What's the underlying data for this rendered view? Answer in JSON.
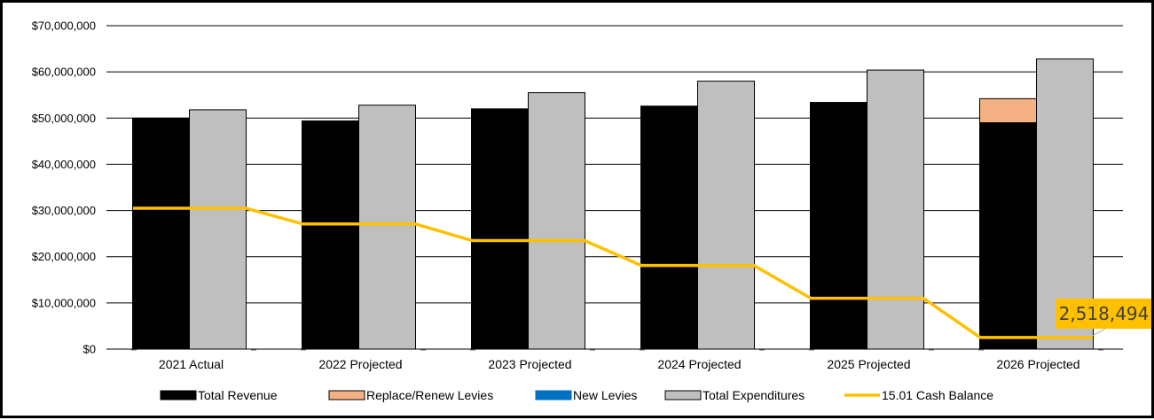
{
  "chart_data": {
    "type": "bar",
    "categories": [
      "2021 Actual",
      "2022 Projected",
      "2023 Projected",
      "2024 Projected",
      "2025 Projected",
      "2026 Projected"
    ],
    "ylim": [
      0,
      70000000
    ],
    "y_ticks": [
      {
        "value": 0,
        "label": "$0"
      },
      {
        "value": 10000000,
        "label": "$10,000,000"
      },
      {
        "value": 20000000,
        "label": "$20,000,000"
      },
      {
        "value": 30000000,
        "label": "$30,000,000"
      },
      {
        "value": 40000000,
        "label": "$40,000,000"
      },
      {
        "value": 50000000,
        "label": "$50,000,000"
      },
      {
        "value": 60000000,
        "label": "$60,000,000"
      },
      {
        "value": 70000000,
        "label": "$70,000,000"
      }
    ],
    "grid": true,
    "legend_position": "bottom",
    "series": [
      {
        "name": "Total Revenue",
        "type": "bar",
        "stack": "revenue",
        "color": "#000000",
        "values": [
          50000000,
          49400000,
          52000000,
          52600000,
          53400000,
          49000000
        ]
      },
      {
        "name": "Replace/Renew Levies",
        "type": "bar",
        "stack": "revenue",
        "color": "#F4B183",
        "values": [
          0,
          0,
          0,
          0,
          0,
          5200000
        ]
      },
      {
        "name": "New Levies",
        "type": "bar",
        "stack": "revenue",
        "color": "#0070C0",
        "values": [
          0,
          0,
          0,
          0,
          0,
          0
        ]
      },
      {
        "name": "Total Expenditures",
        "type": "bar",
        "color": "#BFBFBF",
        "values": [
          51800000,
          52800000,
          55500000,
          58000000,
          60400000,
          62800000
        ]
      },
      {
        "name": "15.01 Cash Balance",
        "type": "line",
        "color": "#FFC000",
        "values": [
          30500000,
          27100000,
          23500000,
          18100000,
          11000000,
          2518494
        ]
      }
    ],
    "annotations": [
      {
        "text": "2,518,494",
        "series": "15.01 Cash Balance",
        "category": "2026 Projected"
      }
    ]
  }
}
